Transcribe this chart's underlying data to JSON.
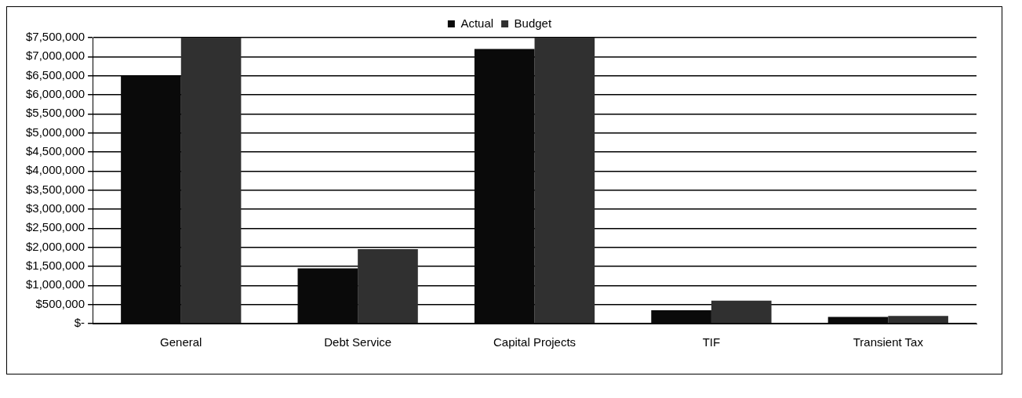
{
  "chart_data": {
    "type": "bar",
    "categories": [
      "General",
      "Debt Service",
      "Capital Projects",
      "TIF",
      "Transient Tax"
    ],
    "series": [
      {
        "name": "Actual",
        "color": "#0a0a0a",
        "values": [
          6500000,
          1450000,
          7200000,
          350000,
          175000
        ]
      },
      {
        "name": "Budget",
        "color": "#303030",
        "values": [
          7500000,
          1950000,
          7500000,
          600000,
          200000
        ]
      }
    ],
    "ylim": [
      0,
      7500000
    ],
    "yticks": [
      {
        "value": 0,
        "label": "$-"
      },
      {
        "value": 500000,
        "label": "$500,000"
      },
      {
        "value": 1000000,
        "label": "$1,000,000"
      },
      {
        "value": 1500000,
        "label": "$1,500,000"
      },
      {
        "value": 2000000,
        "label": "$2,000,000"
      },
      {
        "value": 2500000,
        "label": "$2,500,000"
      },
      {
        "value": 3000000,
        "label": "$3,000,000"
      },
      {
        "value": 3500000,
        "label": "$3,500,000"
      },
      {
        "value": 4000000,
        "label": "$4,000,000"
      },
      {
        "value": 4500000,
        "label": "$4,500,000"
      },
      {
        "value": 5000000,
        "label": "$5,000,000"
      },
      {
        "value": 5500000,
        "label": "$5,500,000"
      },
      {
        "value": 6000000,
        "label": "$6,000,000"
      },
      {
        "value": 6500000,
        "label": "$6,500,000"
      },
      {
        "value": 7000000,
        "label": "$7,000,000"
      },
      {
        "value": 7500000,
        "label": "$7,500,000"
      }
    ],
    "grid": "y",
    "legend": "top"
  }
}
